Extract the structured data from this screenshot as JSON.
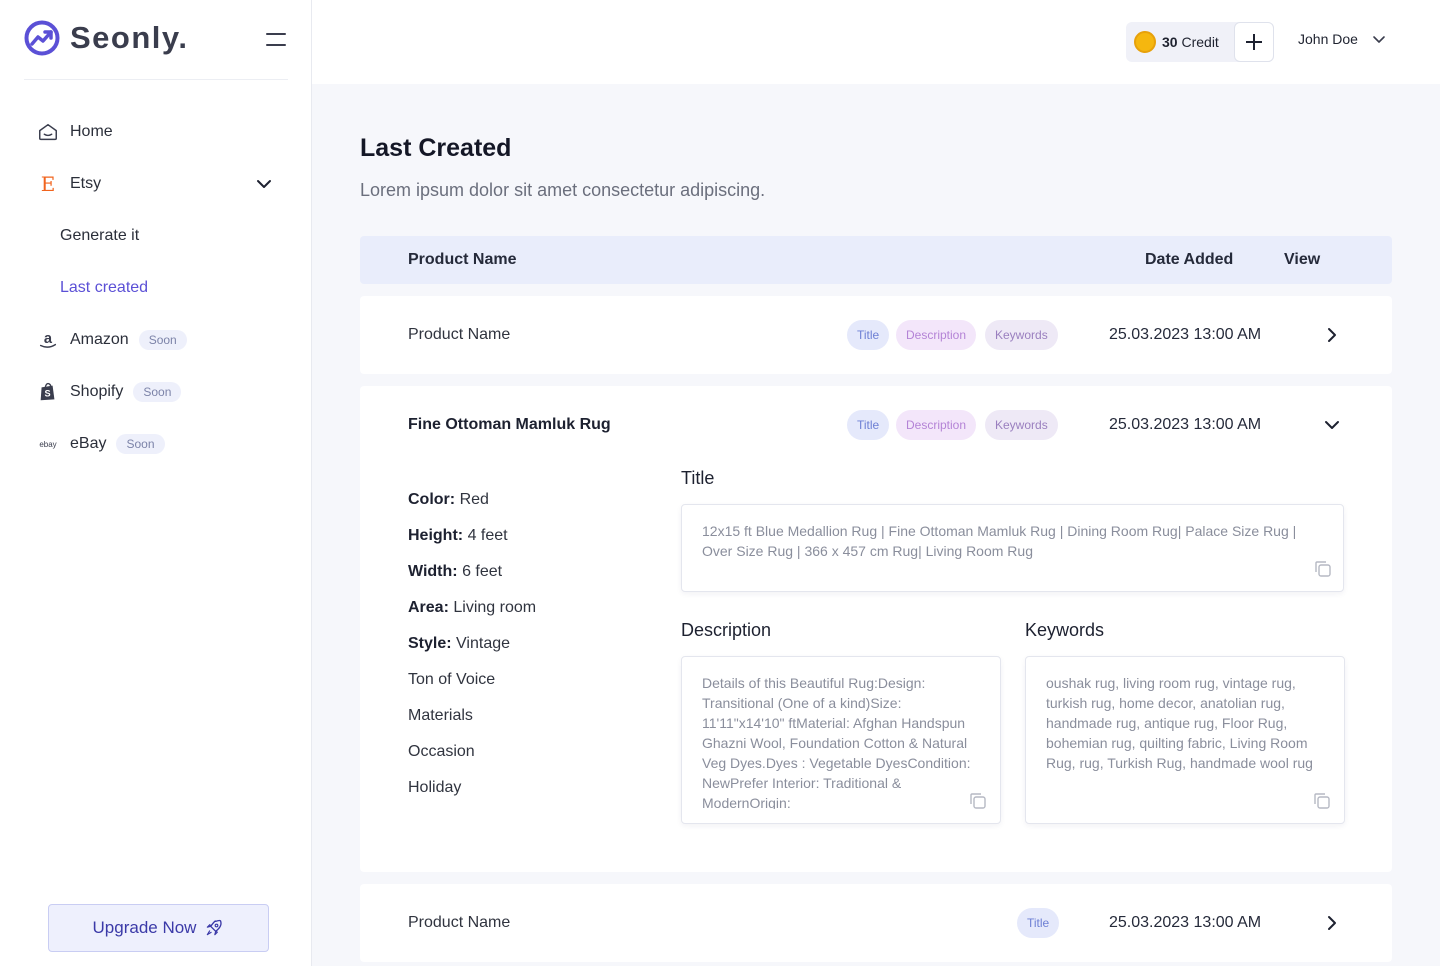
{
  "brand": {
    "name": "Seonly.",
    "accent": "#5b50d6"
  },
  "sidebar": {
    "items": [
      {
        "label": "Home",
        "icon": "home-icon"
      },
      {
        "label": "Etsy",
        "icon": "etsy-icon",
        "sub_items": [
          "Generate it",
          "Last created"
        ],
        "active_sub": "Last created"
      },
      {
        "label": "Amazon",
        "icon": "amazon-icon",
        "badge": "Soon"
      },
      {
        "label": "Shopify",
        "icon": "shopify-icon",
        "badge": "Soon"
      },
      {
        "label": "eBay",
        "icon": "ebay-icon",
        "badge": "Soon"
      }
    ],
    "upgrade_label": "Upgrade Now"
  },
  "header": {
    "credit_amount": "30",
    "credit_label": "Credit",
    "user_name": "John Doe"
  },
  "main": {
    "title": "Last Created",
    "subtitle": "Lorem ipsum dolor sit amet consectetur adipiscing.",
    "columns": {
      "product": "Product Name",
      "date": "Date Added",
      "view": "View"
    },
    "rows": [
      {
        "name": "Product Name",
        "tags": [
          "Title",
          "Description",
          "Keywords"
        ],
        "date": "25.03.2023 13:00 AM",
        "expanded": false
      },
      {
        "name": "Fine Ottoman Mamluk Rug",
        "tags": [
          "Title",
          "Description",
          "Keywords"
        ],
        "date": "25.03.2023 13:00 AM",
        "expanded": true
      },
      {
        "name": "Product Name",
        "tags": [
          "Title"
        ],
        "date": "25.03.2023 13:00 AM",
        "expanded": false
      }
    ],
    "detail": {
      "attributes": [
        {
          "key": "Color:",
          "value": "Red"
        },
        {
          "key": "Height:",
          "value": "4 feet"
        },
        {
          "key": "Width:",
          "value": "6 feet"
        },
        {
          "key": "Area:",
          "value": "Living room"
        },
        {
          "key": "Style:",
          "value": "Vintage"
        }
      ],
      "extra": [
        "Ton of Voice",
        "Materials",
        "Occasion",
        "Holiday"
      ],
      "title_heading": "Title",
      "title_text": "12x15 ft Blue Medallion Rug | Fine Ottoman Mamluk Rug | Dining Room Rug| Palace Size Rug | Over Size Rug | 366 x 457 cm Rug| Living Room Rug",
      "description_heading": "Description",
      "description_text": "Details of this Beautiful Rug:Design: Transitional (One of a kind)Size: 11'11\"x14'10\" ftMaterial: Afghan Handspun Ghazni Wool, Foundation Cotton & Natural Veg Dyes.Dyes : Vegetable DyesCondition: NewPrefer Interior: Traditional & ModernOrigin:",
      "keywords_heading": "Keywords",
      "keywords_text": "oushak rug, living room rug, vintage rug, turkish rug, home decor, anatolian rug, handmade rug, antique rug, Floor Rug, bohemian rug, quilting fabric, Living Room Rug, rug, Turkish Rug, handmade wool rug"
    }
  }
}
